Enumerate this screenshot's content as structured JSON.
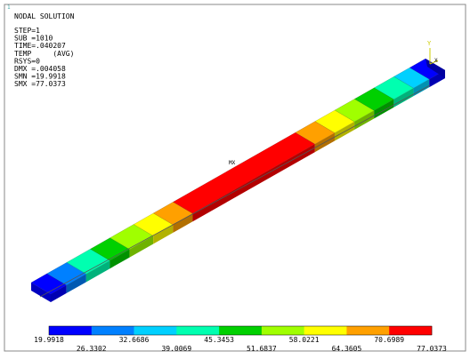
{
  "window_number": "1",
  "header": {
    "title": "NODAL SOLUTION",
    "lines": [
      "STEP=1",
      "SUB =1010",
      "TIME=.040207",
      "TEMP     (AVG)",
      "RSYS=0",
      "DMX =.004058",
      "SMN =19.9918",
      "SMX =77.0373"
    ]
  },
  "annotations": {
    "max_marker": "MX",
    "axis_y": "Y",
    "axis_x": "X"
  },
  "legend": {
    "colors": [
      "#0000ff",
      "#0080ff",
      "#00d0ff",
      "#00ffb0",
      "#00d000",
      "#a0ff00",
      "#ffff00",
      "#ffa000",
      "#ff0000"
    ],
    "labels": [
      "19.9918",
      "26.3302",
      "32.6686",
      "39.0069",
      "45.3453",
      "51.6837",
      "58.0221",
      "64.3605",
      "70.6989",
      "77.0373"
    ]
  }
}
